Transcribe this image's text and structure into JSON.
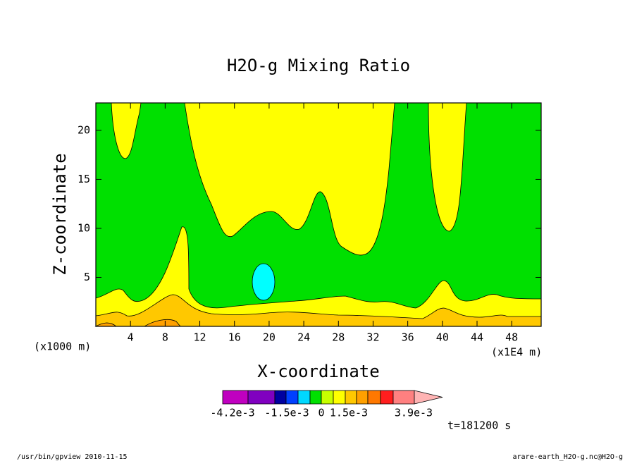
{
  "chart_data": {
    "type": "contour",
    "title": "H2O-g Mixing Ratio",
    "x_label": "X-coordinate",
    "y_label": "Z-coordinate",
    "x_unit": "(x1E4 m)",
    "y_unit": "(x1000 m)",
    "xlim": [
      0,
      51.4
    ],
    "ylim": [
      0,
      22.8
    ],
    "xticks": [
      4,
      8,
      12,
      16,
      20,
      24,
      28,
      32,
      36,
      40,
      44,
      48
    ],
    "yticks": [
      5,
      10,
      15,
      20
    ],
    "colorbar": {
      "colors": [
        "#c000c0",
        "#8000c0",
        "#0000a0",
        "#0040ff",
        "#00d8ff",
        "#00e000",
        "#c8ff00",
        "#ffff00",
        "#ffc800",
        "#ffa000",
        "#ff7800",
        "#ff1e1e",
        "#ff8080",
        "#ffb4b4"
      ],
      "ticks": [
        {
          "value": -0.0042,
          "label": "-4.2e-3"
        },
        {
          "value": -0.0015,
          "label": "-1.5e-3"
        },
        0,
        {
          "value": 0.0015,
          "label": "1.5e-3"
        },
        {
          "value": 0.0039,
          "label": "3.9e-3"
        }
      ]
    },
    "time_label": "t=181200 s",
    "footer_left": "/usr/bin/gpview  2010-11-15",
    "footer_right": "arare-earth_H2O-g.nc@H2O-g"
  }
}
